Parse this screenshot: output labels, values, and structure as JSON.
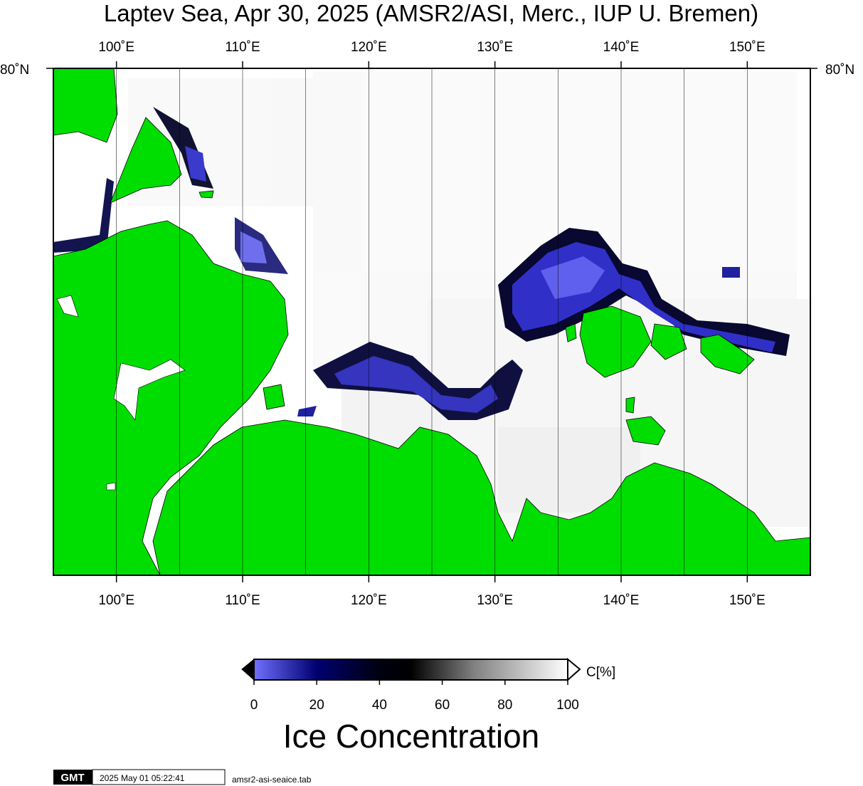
{
  "title": "Laptev Sea, Apr 30, 2025 (AMSR2/ASI, Merc., IUP U. Bremen)",
  "map": {
    "projection": "Merc.",
    "lon_range": [
      95,
      155
    ],
    "land_color": "#00dd00",
    "grid_color": "#000000",
    "lon_ticks": [
      {
        "lon": 100,
        "label": "100˚E"
      },
      {
        "lon": 110,
        "label": "110˚E"
      },
      {
        "lon": 120,
        "label": "120˚E"
      },
      {
        "lon": 130,
        "label": "130˚E"
      },
      {
        "lon": 140,
        "label": "140˚E"
      },
      {
        "lon": 150,
        "label": "150˚E"
      }
    ],
    "lat_label_left": "80˚N",
    "lat_label_right": "80˚N",
    "gridline_lons": [
      100,
      105,
      110,
      115,
      120,
      125,
      130,
      135,
      140,
      145,
      150
    ]
  },
  "colorbar": {
    "unit_label": "C[%]",
    "title": "Ice Concentration",
    "ticks": [
      "0",
      "20",
      "40",
      "60",
      "80",
      "100"
    ],
    "stops": [
      {
        "value": 0,
        "color": "#7070ff"
      },
      {
        "value": 20,
        "color": "#000070"
      },
      {
        "value": 40,
        "color": "#000010"
      },
      {
        "value": 50,
        "color": "#000000"
      },
      {
        "value": 70,
        "color": "#808080"
      },
      {
        "value": 100,
        "color": "#ffffff"
      }
    ]
  },
  "footer": {
    "logo_text": "GMT",
    "timestamp": "2025 May 01 05:22:41",
    "source_file": "amsr2-asi-seaice.tab"
  }
}
